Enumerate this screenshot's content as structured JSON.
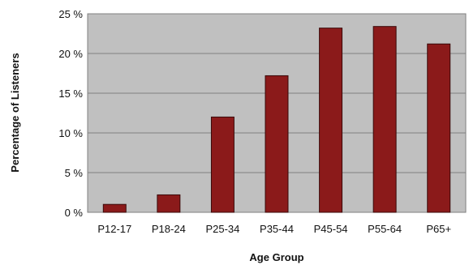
{
  "chart_data": {
    "type": "bar",
    "xlabel": "Age Group",
    "ylabel": "Percentage of Listeners",
    "categories": [
      "P12-17",
      "P18-24",
      "P25-34",
      "P35-44",
      "P45-54",
      "P55-64",
      "P65+"
    ],
    "series": [
      {
        "values": [
          1.0,
          2.2,
          12.0,
          17.2,
          23.2,
          23.4,
          21.2
        ]
      }
    ],
    "ylim": [
      0,
      25
    ],
    "yticks": [
      0,
      5,
      10,
      15,
      20,
      25
    ],
    "ytick_labels": [
      "0 %",
      "5 %",
      "10 %",
      "15 %",
      "20 %",
      "25 %"
    ],
    "grid": true,
    "legend": "none",
    "colors": {
      "bar": "#8b1a1a",
      "bar_edge": "#3a0a0a",
      "plot_background": "#c0c0c0",
      "gridline": "#808080"
    }
  }
}
